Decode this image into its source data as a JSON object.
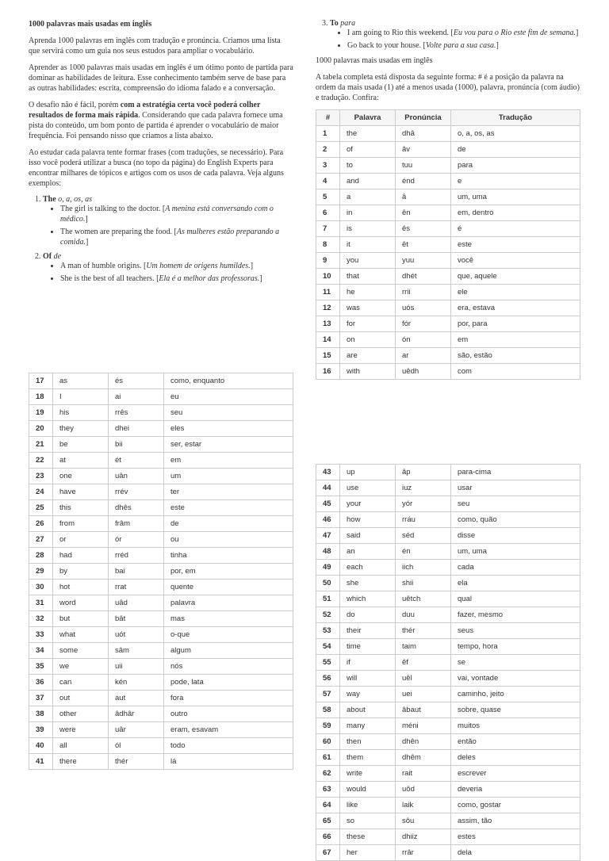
{
  "title": "1000 palavras mais usadas em inglês",
  "intro1": "Aprenda 1000 palavras em inglês com tradução e pronúncia. Criamos uma lista que servirá como um guia nos seus estudos para ampliar o vocabulário.",
  "intro2": "Aprender as 1000 palavras mais usadas em inglês é um ótimo ponto de partida para dominar as habilidades de leitura. Esse conhecimento também serve de base para as outras habilidades: escrita, compreensão do idioma falado e a conversação.",
  "intro3a": "O desafio não é fácil, porém ",
  "intro3b": "com a estratégia certa você poderá colher resultados de forma mais rápida",
  "intro3c": ". Considerando que cada palavra fornece uma pista do conteúdo, um bom ponto de partida é aprender o vocabulário de maior frequência. Foi pensando nisso que criamos a lista abaixo.",
  "intro4": "Ao estudar cada palavra tente formar frases (com traduções, se necessário). Para isso você poderá utilizar a busca (no topo da página) do English Experts para encontrar milhares de tópicos e artigos com os usos de cada palavra. Veja alguns exemplos:",
  "ex1_h": "The",
  "ex1_t": " o, a, os, as",
  "ex1_1a": "The girl is talking to the doctor. [",
  "ex1_1b": "A menina está conversando com o médico.",
  "ex1_1c": "]",
  "ex1_2a": "The women are preparing the food. [",
  "ex1_2b": "As mulheres estão preparando a comida.",
  "ex1_2c": "]",
  "ex2_h": "Of",
  "ex2_t": " de",
  "ex2_1a": "A man of humble origins. [",
  "ex2_1b": "Um homem de origens humildes.",
  "ex2_1c": "]",
  "ex2_2a": "She is the best of all teachers. [",
  "ex2_2b": "Ela é a melhor das professoras.",
  "ex2_2c": "]",
  "ex3_h": "To",
  "ex3_t": " para",
  "ex3_1a": "I am going to Rio this weekend. [",
  "ex3_1b": "Eu vou para o Rio este fim de semana.",
  "ex3_1c": "]",
  "ex3_2a": "Go back to your house. [",
  "ex3_2b": "Volte para a sua casa.",
  "ex3_2c": "]",
  "repeat_title": "1000 palavras mais usadas em inglês",
  "table_intro": "A tabela completa está disposta da seguinte forma: # é a posição da palavra na ordem da mais usada (1) até a menos usada (1000), palavra, pronúncia (com áudio) e tradução. Confira:",
  "headers": [
    "#",
    "Palavra",
    "Pronúncia",
    "Tradução"
  ],
  "rows1": [
    [
      "1",
      "the",
      "dhâ",
      "o, a, os, as"
    ],
    [
      "2",
      "of",
      "âv",
      "de"
    ],
    [
      "3",
      "to",
      "tuu",
      "para"
    ],
    [
      "4",
      "and",
      "énd",
      "e"
    ],
    [
      "5",
      "a",
      "â",
      "um, uma"
    ],
    [
      "6",
      "in",
      "ên",
      "em, dentro"
    ],
    [
      "7",
      "is",
      "ês",
      "é"
    ],
    [
      "8",
      "it",
      "êt",
      "este"
    ],
    [
      "9",
      "you",
      "yuu",
      "você"
    ],
    [
      "10",
      "that",
      "dhét",
      "que, aquele"
    ],
    [
      "11",
      "he",
      "rrii",
      "ele"
    ],
    [
      "12",
      "was",
      "uós",
      "era, estava"
    ],
    [
      "13",
      "for",
      "fór",
      "por, para"
    ],
    [
      "14",
      "on",
      "ón",
      "em"
    ],
    [
      "15",
      "are",
      "ar",
      "são, estão"
    ],
    [
      "16",
      "with",
      "uêdh",
      "com"
    ]
  ],
  "rows2": [
    [
      "17",
      "as",
      "és",
      "como, enquanto"
    ],
    [
      "18",
      "I",
      "ai",
      "eu"
    ],
    [
      "19",
      "his",
      "rrês",
      "seu"
    ],
    [
      "20",
      "they",
      "dhei",
      "eles"
    ],
    [
      "21",
      "be",
      "bii",
      "ser, estar"
    ],
    [
      "22",
      "at",
      "ét",
      "em"
    ],
    [
      "23",
      "one",
      "uân",
      "um"
    ],
    [
      "24",
      "have",
      "rrév",
      "ter"
    ],
    [
      "25",
      "this",
      "dhês",
      "este"
    ],
    [
      "26",
      "from",
      "frâm",
      "de"
    ],
    [
      "27",
      "or",
      "ór",
      "ou"
    ],
    [
      "28",
      "had",
      "rréd",
      "tinha"
    ],
    [
      "29",
      "by",
      "bai",
      "por, em"
    ],
    [
      "30",
      "hot",
      "rrat",
      "quente"
    ],
    [
      "31",
      "word",
      "uâd",
      "palavra"
    ],
    [
      "32",
      "but",
      "bât",
      "mas"
    ],
    [
      "33",
      "what",
      "uót",
      "o-que"
    ],
    [
      "34",
      "some",
      "sâm",
      "algum"
    ],
    [
      "35",
      "we",
      "uii",
      "nós"
    ],
    [
      "36",
      "can",
      "kén",
      "pode, lata"
    ],
    [
      "37",
      "out",
      "aut",
      "fora"
    ],
    [
      "38",
      "other",
      "âdhâr",
      "outro"
    ],
    [
      "39",
      "were",
      "uâr",
      "eram, esavam"
    ],
    [
      "40",
      "all",
      "ól",
      "todo"
    ],
    [
      "41",
      "there",
      "thér",
      "lá"
    ]
  ],
  "rows3": [
    [
      "43",
      "up",
      "âp",
      "para-cima"
    ],
    [
      "44",
      "use",
      "iuz",
      "usar"
    ],
    [
      "45",
      "your",
      "yór",
      "seu"
    ],
    [
      "46",
      "how",
      "rráu",
      "como, quão"
    ],
    [
      "47",
      "said",
      "séd",
      "disse"
    ],
    [
      "48",
      "an",
      "én",
      "um, uma"
    ],
    [
      "49",
      "each",
      "iich",
      "cada"
    ],
    [
      "50",
      "she",
      "shii",
      "ela"
    ],
    [
      "51",
      "which",
      "uêtch",
      "qual"
    ],
    [
      "52",
      "do",
      "duu",
      "fazer, mesmo"
    ],
    [
      "53",
      "their",
      "thér",
      "seus"
    ],
    [
      "54",
      "time",
      "taim",
      "tempo, hora"
    ],
    [
      "55",
      "if",
      "êf",
      "se"
    ],
    [
      "56",
      "will",
      "uêl",
      "vai, vontade"
    ],
    [
      "57",
      "way",
      "uei",
      "caminho, jeito"
    ],
    [
      "58",
      "about",
      "âbaut",
      "sobre, quase"
    ],
    [
      "59",
      "many",
      "méni",
      "muitos"
    ],
    [
      "60",
      "then",
      "dhên",
      "então"
    ],
    [
      "61",
      "them",
      "dhêm",
      "deles"
    ],
    [
      "62",
      "write",
      "rait",
      "escrever"
    ],
    [
      "63",
      "would",
      "uôd",
      "deveria"
    ],
    [
      "64",
      "like",
      "laik",
      "como, gostar"
    ],
    [
      "65",
      "so",
      "sôu",
      "assim, tão"
    ],
    [
      "66",
      "these",
      "dhiiz",
      "estes"
    ],
    [
      "67",
      "her",
      "rrâr",
      "dela"
    ]
  ]
}
